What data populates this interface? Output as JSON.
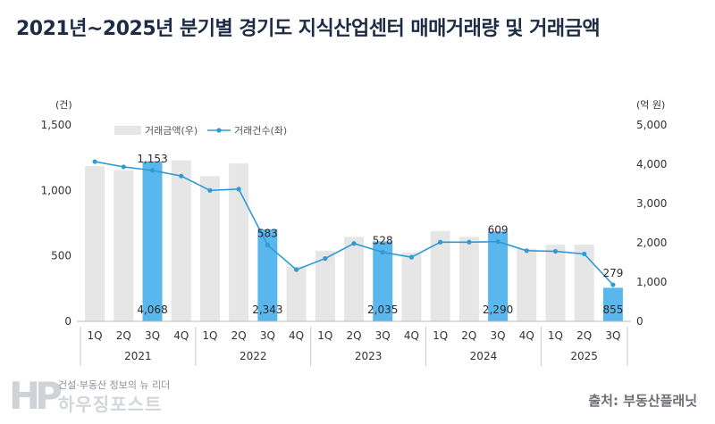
{
  "title": "2021년~2025년 분기별 경기도 지식산업센터 매매거래량 및 거래금액",
  "source": "출처: 부동산플래닛",
  "logo": {
    "tagline": "건설·부동산 정보의 뉴 리더",
    "name": "하우징포스트"
  },
  "chart_data": {
    "type": "bar",
    "title": "2021년~2025년 분기별 경기도 지식산업센터 매매거래량 및 거래금액",
    "left_axis": {
      "unit": "(건)",
      "range": [
        0,
        1500
      ],
      "ticks": [
        "0",
        "500",
        "1,000",
        "1,500"
      ],
      "tick_values": [
        0,
        500,
        1000,
        1500
      ]
    },
    "right_axis": {
      "unit": "(억 원)",
      "range": [
        0,
        5000
      ],
      "ticks": [
        "0",
        "1,000",
        "2,000",
        "3,000",
        "4,000",
        "5,000"
      ],
      "tick_values": [
        0,
        1000,
        2000,
        3000,
        4000,
        5000
      ]
    },
    "categories": [
      "1Q",
      "2Q",
      "3Q",
      "4Q",
      "1Q",
      "2Q",
      "3Q",
      "4Q",
      "1Q",
      "2Q",
      "3Q",
      "4Q",
      "1Q",
      "2Q",
      "3Q",
      "4Q",
      "1Q",
      "2Q",
      "3Q"
    ],
    "years": [
      {
        "label": "2021",
        "count": 4
      },
      {
        "label": "2022",
        "count": 4
      },
      {
        "label": "2023",
        "count": 4
      },
      {
        "label": "2024",
        "count": 4
      },
      {
        "label": "2025",
        "count": 3
      }
    ],
    "series": [
      {
        "name": "거래금액(우)",
        "type": "bar",
        "axis": "right",
        "color": "#e6e6e6",
        "highlight_color": "#5ab7ee",
        "values": [
          3950,
          3850,
          4068,
          4100,
          3700,
          4020,
          2343,
          1400,
          1800,
          2150,
          2035,
          1750,
          2300,
          2150,
          2290,
          1850,
          1950,
          1950,
          855
        ]
      },
      {
        "name": "거래건수(좌)",
        "type": "line",
        "axis": "left",
        "color": "#2f9bd6",
        "values": [
          1220,
          1180,
          1153,
          1110,
          1000,
          1010,
          583,
          395,
          480,
          595,
          528,
          490,
          605,
          605,
          609,
          540,
          535,
          515,
          279
        ]
      }
    ],
    "highlight_indices": [
      2,
      6,
      10,
      14,
      18
    ],
    "highlight_labels": {
      "bar": [
        "4,068",
        "2,343",
        "2,035",
        "2,290",
        "855"
      ],
      "line": [
        "1,153",
        "583",
        "528",
        "609",
        "279"
      ]
    }
  }
}
